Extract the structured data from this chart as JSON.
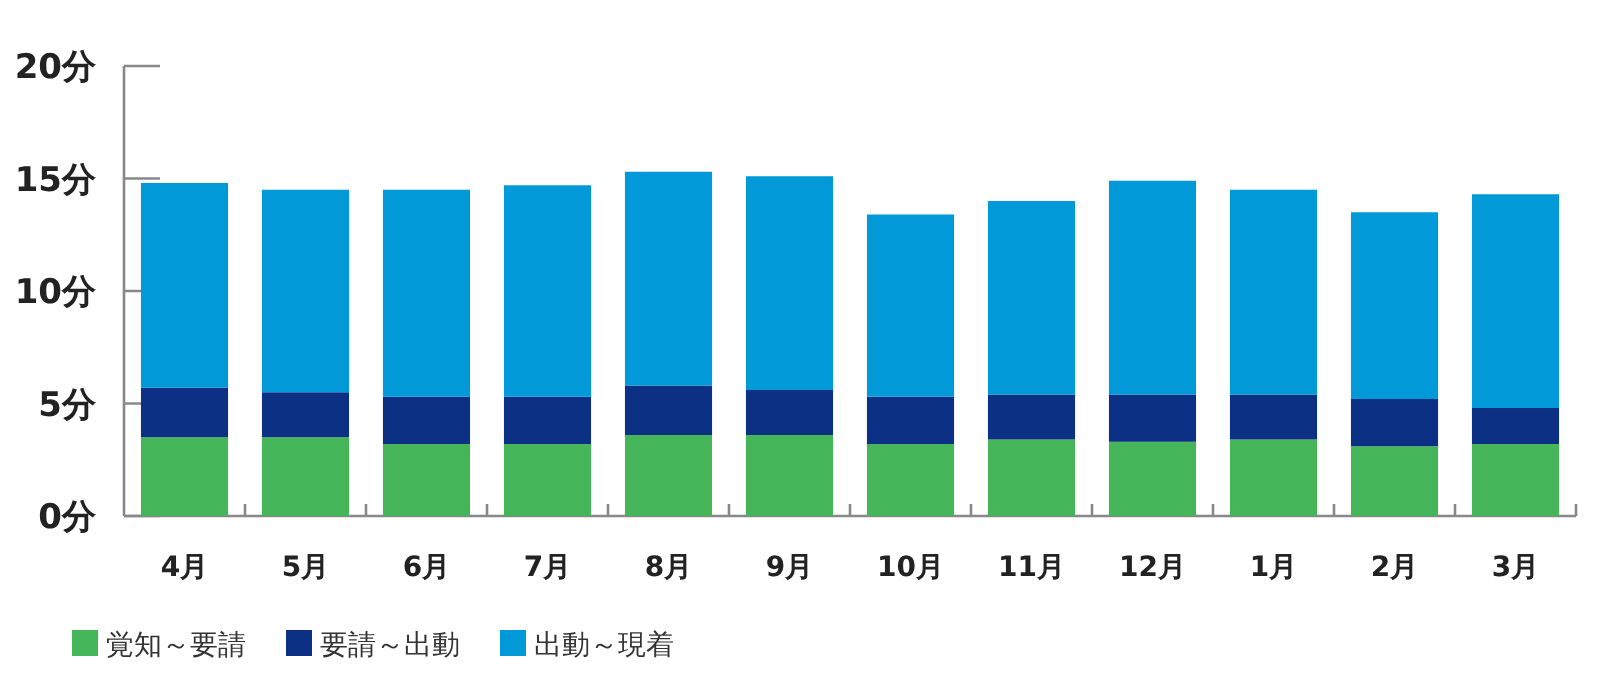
{
  "chart_data": {
    "type": "bar",
    "stacked": true,
    "categories": [
      "4月",
      "5月",
      "6月",
      "7月",
      "8月",
      "9月",
      "10月",
      "11月",
      "12月",
      "1月",
      "2月",
      "3月"
    ],
    "series": [
      {
        "name": "覚知～要請",
        "color": "#45b55a",
        "values": [
          3.5,
          3.5,
          3.2,
          3.2,
          3.6,
          3.6,
          3.2,
          3.4,
          3.3,
          3.4,
          3.1,
          3.2
        ]
      },
      {
        "name": "要請～出動",
        "color": "#0c3184",
        "values": [
          2.2,
          2.0,
          2.1,
          2.1,
          2.2,
          2.0,
          2.1,
          2.0,
          2.1,
          2.0,
          2.1,
          1.6
        ]
      },
      {
        "name": "出動～現着",
        "color": "#0299d8",
        "values": [
          9.1,
          9.0,
          9.2,
          9.4,
          9.5,
          9.5,
          8.1,
          8.6,
          9.5,
          9.1,
          8.3,
          9.5
        ]
      }
    ],
    "ylim": [
      0,
      20
    ],
    "yticks": [
      {
        "value": 0,
        "label": "0分"
      },
      {
        "value": 5,
        "label": "5分"
      },
      {
        "value": 10,
        "label": "10分"
      },
      {
        "value": 15,
        "label": "15分"
      },
      {
        "value": 20,
        "label": "20分"
      }
    ],
    "grid": false,
    "legend": "bottom left"
  }
}
